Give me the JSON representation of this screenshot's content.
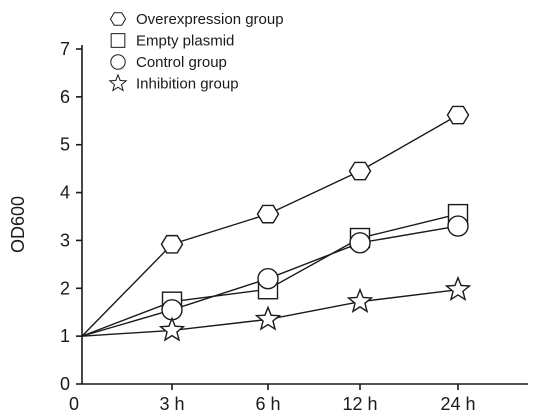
{
  "chart_data": {
    "type": "line",
    "categories": [
      "0",
      "3 h",
      "6 h",
      "12 h",
      "24 h"
    ],
    "xlabel": "",
    "ylabel": "OD600",
    "ylim": [
      0,
      7
    ],
    "yticks": [
      "0",
      "1",
      "2",
      "3",
      "4",
      "5",
      "6",
      "7"
    ],
    "grid": false,
    "legend_position": "top-left",
    "series": [
      {
        "name": "Overexpression group",
        "marker": "hexagon",
        "values": [
          1.0,
          2.92,
          3.55,
          4.45,
          5.62
        ]
      },
      {
        "name": "Empty plasmid",
        "marker": "square",
        "values": [
          1.0,
          1.72,
          1.98,
          3.05,
          3.55
        ]
      },
      {
        "name": "Control group",
        "marker": "circle",
        "values": [
          1.0,
          1.55,
          2.2,
          2.95,
          3.3
        ]
      },
      {
        "name": "Inhibition group",
        "marker": "star",
        "values": [
          1.0,
          1.12,
          1.35,
          1.72,
          1.97
        ]
      }
    ]
  }
}
